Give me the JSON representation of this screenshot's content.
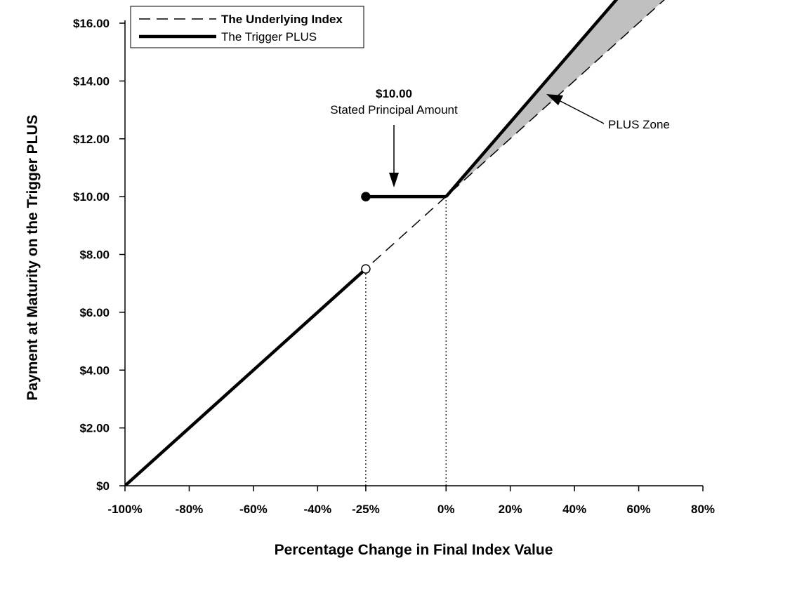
{
  "chart_data": {
    "type": "line",
    "xlabel": "Percentage Change in Final Index Value",
    "ylabel": "Payment at Maturity on the Trigger PLUS",
    "xlim": [
      -100,
      80
    ],
    "ylim": [
      0,
      16
    ],
    "x_ticks": [
      -100,
      -80,
      -60,
      -40,
      -25,
      0,
      20,
      40,
      60,
      80
    ],
    "x_tick_labels": [
      "-100%",
      "-80%",
      "-60%",
      "-40%",
      "-25%",
      "0%",
      "20%",
      "40%",
      "60%",
      "80%"
    ],
    "y_ticks": [
      0,
      2,
      4,
      6,
      8,
      10,
      12,
      14,
      16
    ],
    "y_tick_labels": [
      "$0",
      "$2.00",
      "$4.00",
      "$6.00",
      "$8.00",
      "$10.00",
      "$12.00",
      "$14.00",
      "$16.00"
    ],
    "legend": [
      {
        "label": "The Underlying Index",
        "style": "dashed"
      },
      {
        "label": "The Trigger PLUS",
        "style": "solid-thick"
      }
    ],
    "legend_position": "top-left",
    "series": [
      {
        "name": "The Underlying Index",
        "style": "dashed",
        "points": [
          [
            -100,
            0
          ],
          [
            68.9,
            16.9
          ]
        ]
      },
      {
        "name": "The Trigger PLUS",
        "style": "solid-thick",
        "segments": [
          [
            [
              -100,
              0
            ],
            [
              -25,
              7.5
            ]
          ],
          [
            [
              -25,
              10
            ],
            [
              0,
              10
            ]
          ],
          [
            [
              0,
              10
            ],
            [
              54.5,
              17
            ]
          ]
        ]
      }
    ],
    "markers": [
      {
        "x": -25,
        "y": 10,
        "filled": true
      },
      {
        "x": -25,
        "y": 7.5,
        "filled": false
      }
    ],
    "reference_lines": [
      {
        "x": -25,
        "y_from": 0,
        "y_to": 7.5,
        "style": "dotted"
      },
      {
        "x": 0,
        "y_from": 0,
        "y_to": 10,
        "style": "dotted"
      }
    ],
    "shaded_region": {
      "name": "PLUS Zone",
      "color": "#c0c0c0"
    },
    "annotations": [
      {
        "id": "principal",
        "lines": [
          "$10.00",
          "Stated Principal Amount"
        ]
      },
      {
        "id": "plus_zone",
        "lines": [
          "PLUS Zone"
        ]
      }
    ]
  }
}
